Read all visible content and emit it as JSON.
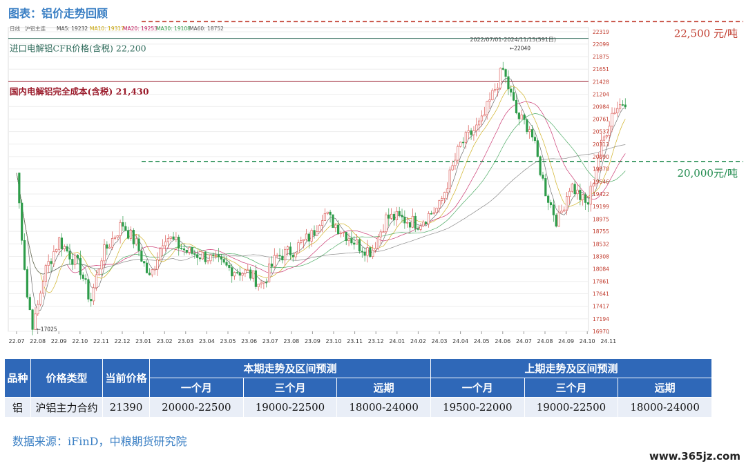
{
  "title": "图表：铝价走势回顾",
  "chart_data": {
    "type": "candlestick",
    "indicator_line": {
      "code": "日线",
      "instrument": "沪铝主连",
      "items": [
        {
          "label": "MA5",
          "value": "19232",
          "color": "#444444"
        },
        {
          "label": "MA10",
          "value": "19317",
          "color": "#c8a400"
        },
        {
          "label": "MA20",
          "value": "19253",
          "color": "#c2185b"
        },
        {
          "label": "MA30",
          "value": "19108",
          "color": "#2e9c4a"
        },
        {
          "label": "MA60",
          "value": "18752",
          "color": "#555555"
        }
      ]
    },
    "range_label": "2022/07/01-2024/11/15(591日)",
    "y_ticks": [
      22319,
      22099,
      21875,
      21651,
      21428,
      21204,
      20984,
      20761,
      20537,
      20313,
      20090,
      19870,
      19646,
      19422,
      19199,
      18975,
      18755,
      18532,
      18308,
      18084,
      17861,
      17641,
      17417,
      17194,
      16970
    ],
    "ylim": [
      16970,
      22319
    ],
    "x_ticks": [
      "22.07",
      "22.08",
      "22.09",
      "22.10",
      "22.11",
      "22.12",
      "23.01",
      "23.02",
      "23.03",
      "23.04",
      "23.05",
      "23.06",
      "23.07",
      "23.08",
      "23.09",
      "23.10",
      "23.11",
      "23.12",
      "24.01",
      "24.02",
      "24.03",
      "24.04",
      "24.05",
      "24.06",
      "24.07",
      "24.08",
      "24.09",
      "24.10",
      "24.11"
    ],
    "price_path": [
      {
        "m": 0,
        "v": 19800
      },
      {
        "m": 0.5,
        "v": 17600
      },
      {
        "m": 0.8,
        "v": 17025
      },
      {
        "m": 1.3,
        "v": 18000
      },
      {
        "m": 2,
        "v": 18600
      },
      {
        "m": 3,
        "v": 18100
      },
      {
        "m": 3.5,
        "v": 17500
      },
      {
        "m": 4,
        "v": 18300
      },
      {
        "m": 5,
        "v": 18900
      },
      {
        "m": 5.7,
        "v": 18500
      },
      {
        "m": 6.3,
        "v": 17900
      },
      {
        "m": 7,
        "v": 18700
      },
      {
        "m": 8,
        "v": 18400
      },
      {
        "m": 9,
        "v": 18300
      },
      {
        "m": 10,
        "v": 18100
      },
      {
        "m": 11,
        "v": 18000
      },
      {
        "m": 11.6,
        "v": 17800
      },
      {
        "m": 12.3,
        "v": 18300
      },
      {
        "m": 13,
        "v": 18400
      },
      {
        "m": 14,
        "v": 18700
      },
      {
        "m": 14.5,
        "v": 19100
      },
      {
        "m": 15,
        "v": 18900
      },
      {
        "m": 16.2,
        "v": 18500
      },
      {
        "m": 16.8,
        "v": 18400
      },
      {
        "m": 17.5,
        "v": 19000
      },
      {
        "m": 18,
        "v": 19000
      },
      {
        "m": 19,
        "v": 18900
      },
      {
        "m": 20,
        "v": 19200
      },
      {
        "m": 21,
        "v": 20300
      },
      {
        "m": 22,
        "v": 20700
      },
      {
        "m": 23,
        "v": 21650
      },
      {
        "m": 23.7,
        "v": 20800
      },
      {
        "m": 24.3,
        "v": 20600
      },
      {
        "m": 25,
        "v": 19500
      },
      {
        "m": 25.6,
        "v": 18900
      },
      {
        "m": 26.2,
        "v": 19600
      },
      {
        "m": 27,
        "v": 19200
      },
      {
        "m": 27.6,
        "v": 20200
      },
      {
        "m": 28.2,
        "v": 20900
      },
      {
        "m": 28.8,
        "v": 21100
      }
    ],
    "annotations": [
      {
        "text": "17025",
        "m": 0.8,
        "v": 17025
      },
      {
        "text": "22040",
        "m": 23.2,
        "v": 22040
      }
    ],
    "reference_lines": [
      {
        "label": "进口电解铝CFR价格(含税) 22,200",
        "value": 22200,
        "color": "#2e6a5a",
        "style": "solid"
      },
      {
        "label": "国内电解铝完全成本(含税) 21,430",
        "value": 21430,
        "color": "#9b1c2c",
        "style": "solid"
      },
      {
        "label": "22,500 元/吨",
        "value": 22500,
        "color": "#c0392b",
        "style": "dashed"
      },
      {
        "label": "20,000元/吨",
        "value": 20000,
        "color": "#1e8a4c",
        "style": "dashed"
      }
    ]
  },
  "table": {
    "headers": {
      "variety": "品种",
      "price_type": "价格类型",
      "current_price": "当前价格",
      "this_period": "本期走势及区间预测",
      "last_period": "上期走势及区间预测",
      "sub": [
        "一个月",
        "三个月",
        "远期",
        "一个月",
        "三个月",
        "远期"
      ]
    },
    "row": {
      "variety": "铝",
      "price_type": "沪铝主力合约",
      "current_price": "21390",
      "values": [
        "20000-22500",
        "19000-22500",
        "18000-24000",
        "19500-22000",
        "19000-22500",
        "18000-24000"
      ]
    }
  },
  "source": "数据来源：iFinD，中粮期货研究院",
  "watermark": "www.365jz.com"
}
